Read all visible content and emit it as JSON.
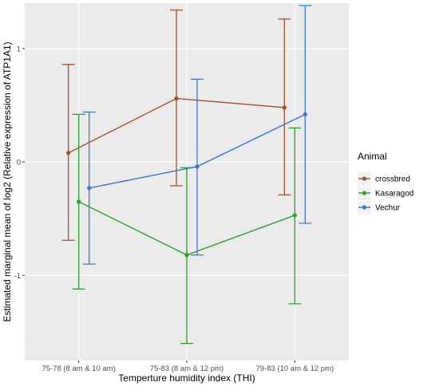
{
  "chart_data": {
    "type": "line",
    "xlabel": "Temperture humidity index (THI)",
    "ylabel": "Estimated marginal mean of log2 (Relative expression of ATP1A1)",
    "categories": [
      "75-78 (8 am & 10 am)",
      "75-83 (8 am & 12 pm)",
      "79-83 (10 am & 12 pm)"
    ],
    "y_ticks": [
      "-1",
      "0",
      "1"
    ],
    "ylim": [
      -1.75,
      1.4
    ],
    "grid": true,
    "legend": {
      "title": "Animal",
      "position": "right"
    },
    "series": [
      {
        "name": "crossbred",
        "color": "#a0522d",
        "values": [
          0.08,
          0.56,
          0.48
        ],
        "lower": [
          -0.69,
          -0.21,
          -0.29
        ],
        "upper": [
          0.86,
          1.34,
          1.26
        ]
      },
      {
        "name": "Kasaragod",
        "color": "#2ca02c",
        "values": [
          -0.35,
          -0.82,
          -0.47
        ],
        "lower": [
          -1.12,
          -1.6,
          -1.25
        ],
        "upper": [
          0.42,
          -0.05,
          0.3
        ]
      },
      {
        "name": "Vechur",
        "color": "#3a78d8",
        "values": [
          -0.23,
          -0.04,
          0.42
        ],
        "lower": [
          -0.9,
          -0.82,
          -0.54
        ],
        "upper": [
          0.44,
          0.73,
          1.38
        ]
      }
    ]
  }
}
